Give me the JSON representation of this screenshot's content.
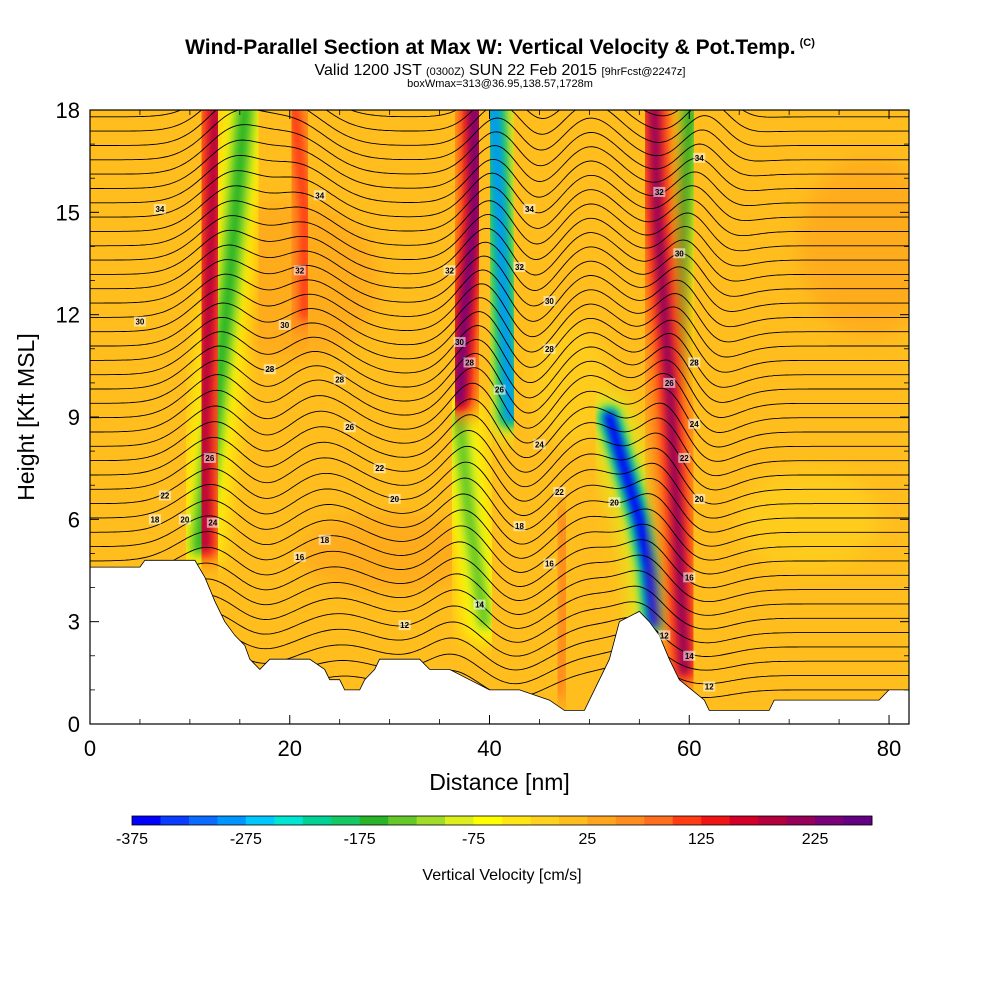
{
  "title": {
    "main": "Wind-Parallel Section at Max W: Vertical Velocity & Pot.Temp.",
    "copyright": "(C)",
    "valid_prefix": "Valid 1200 JST",
    "valid_utc": "(0300Z)",
    "valid_date": "SUN 22 Feb 2015",
    "forecast": "[9hrFcst@2247z]",
    "box": "boxWmax=313@36.95,138.57,1728m"
  },
  "chart_data": {
    "type": "heatmap",
    "xlabel": "Distance [nm]",
    "ylabel": "Height [Kft MSL]",
    "xlim": [
      0,
      82
    ],
    "ylim": [
      0,
      18
    ],
    "x_ticks": [
      0,
      20,
      40,
      60,
      80
    ],
    "y_ticks": [
      0,
      3,
      6,
      9,
      12,
      15,
      18
    ],
    "colorbar": {
      "label": "Vertical Velocity [cm/s]",
      "min": -375,
      "max": 275,
      "step": 25,
      "tick_labels": [
        -375,
        -275,
        -175,
        -75,
        25,
        125,
        225
      ],
      "colors": [
        "#0000ff",
        "#0a3dff",
        "#0a6cff",
        "#0096ff",
        "#00c8ff",
        "#00e6d2",
        "#00d296",
        "#14c864",
        "#28b428",
        "#64c828",
        "#a0dc28",
        "#dcf01e",
        "#ffff00",
        "#ffe614",
        "#ffd21e",
        "#ffbe1e",
        "#ffa51e",
        "#ff8c1e",
        "#ff6e1e",
        "#ff3c14",
        "#f01414",
        "#d20028",
        "#b4003c",
        "#96005a",
        "#780078",
        "#640082"
      ]
    },
    "terrain_kft": [
      [
        0,
        4.6
      ],
      [
        5,
        4.6
      ],
      [
        5.5,
        4.8
      ],
      [
        10.5,
        4.8
      ],
      [
        11.5,
        4.3
      ],
      [
        12.5,
        3.6
      ],
      [
        13.5,
        3.0
      ],
      [
        14.5,
        2.6
      ],
      [
        15.5,
        2.3
      ],
      [
        16,
        1.9
      ],
      [
        17,
        1.6
      ],
      [
        18,
        1.9
      ],
      [
        22,
        1.9
      ],
      [
        23.5,
        1.6
      ],
      [
        24,
        1.3
      ],
      [
        25,
        1.3
      ],
      [
        25.5,
        1.0
      ],
      [
        27,
        1.0
      ],
      [
        27.5,
        1.3
      ],
      [
        28.5,
        1.6
      ],
      [
        29,
        1.9
      ],
      [
        33,
        1.9
      ],
      [
        34,
        1.6
      ],
      [
        36,
        1.6
      ],
      [
        38,
        1.3
      ],
      [
        40,
        1.0
      ],
      [
        43,
        1.0
      ],
      [
        46,
        0.7
      ],
      [
        47.5,
        0.4
      ],
      [
        49.5,
        0.4
      ],
      [
        50.5,
        1.0
      ],
      [
        52,
        1.9
      ],
      [
        53,
        3.0
      ],
      [
        55,
        3.3
      ],
      [
        56,
        3.0
      ],
      [
        57,
        2.6
      ],
      [
        58,
        1.9
      ],
      [
        59,
        1.3
      ],
      [
        61.5,
        0.7
      ],
      [
        62,
        0.4
      ],
      [
        68,
        0.4
      ],
      [
        68.5,
        0.7
      ],
      [
        79,
        0.7
      ],
      [
        80,
        1.0
      ],
      [
        82,
        1.0
      ]
    ],
    "updraft_bands": [
      {
        "w": 175,
        "points": [
          [
            11.5,
            5.2
          ],
          [
            11.5,
            9.0
          ],
          [
            12.0,
            13.0
          ],
          [
            12.5,
            18.0
          ]
        ]
      },
      {
        "w": 225,
        "points": [
          [
            37.0,
            9.5
          ],
          [
            37.5,
            12.0
          ],
          [
            38.5,
            15.0
          ],
          [
            38.5,
            18.0
          ]
        ]
      },
      {
        "w": 200,
        "points": [
          [
            59.5,
            1.6
          ],
          [
            59.0,
            5.0
          ],
          [
            58.0,
            10.0
          ],
          [
            56.8,
            15.0
          ],
          [
            56.5,
            18.0
          ]
        ]
      },
      {
        "w": 100,
        "points": [
          [
            21.5,
            12.0
          ],
          [
            21.5,
            15.0
          ],
          [
            20.5,
            18.0
          ]
        ]
      },
      {
        "w": 50,
        "points": [
          [
            47.0,
            1.0
          ],
          [
            47.5,
            3.0
          ],
          [
            47.5,
            6.0
          ]
        ]
      }
    ],
    "downdraft_bands": [
      {
        "w": -175,
        "points": [
          [
            11.0,
            5.2
          ],
          [
            12.5,
            9.0
          ],
          [
            14.0,
            13.0
          ],
          [
            15.5,
            18.0
          ]
        ]
      },
      {
        "w": -300,
        "points": [
          [
            42.0,
            9.0
          ],
          [
            41.5,
            12.0
          ],
          [
            41.0,
            15.0
          ],
          [
            40.5,
            18.0
          ]
        ]
      },
      {
        "w": -375,
        "points": [
          [
            56.5,
            3.0
          ],
          [
            56.0,
            4.5
          ],
          [
            55.0,
            6.0
          ],
          [
            52.0,
            9.0
          ]
        ]
      },
      {
        "w": -150,
        "points": [
          [
            39.5,
            3.0
          ],
          [
            38.0,
            6.0
          ],
          [
            37.0,
            9.0
          ]
        ]
      },
      {
        "w": -175,
        "points": [
          [
            58.5,
            10.0
          ],
          [
            59.2,
            14.0
          ],
          [
            60.0,
            18.0
          ]
        ]
      }
    ],
    "isentrope_labels": [
      {
        "value": "34",
        "x": 7,
        "y": 15.1
      },
      {
        "value": "34",
        "x": 23,
        "y": 15.5
      },
      {
        "value": "34",
        "x": 44,
        "y": 15.1
      },
      {
        "value": "34",
        "x": 61,
        "y": 16.6
      },
      {
        "value": "32",
        "x": 21,
        "y": 13.3
      },
      {
        "value": "32",
        "x": 36,
        "y": 13.3
      },
      {
        "value": "32",
        "x": 43,
        "y": 13.4
      },
      {
        "value": "32",
        "x": 57,
        "y": 15.6
      },
      {
        "value": "30",
        "x": 5,
        "y": 11.8
      },
      {
        "value": "30",
        "x": 19.5,
        "y": 11.7
      },
      {
        "value": "30",
        "x": 37,
        "y": 11.2
      },
      {
        "value": "30",
        "x": 46,
        "y": 12.4
      },
      {
        "value": "30",
        "x": 59,
        "y": 13.8
      },
      {
        "value": "28",
        "x": 18,
        "y": 10.4
      },
      {
        "value": "28",
        "x": 25,
        "y": 10.1
      },
      {
        "value": "28",
        "x": 38,
        "y": 10.6
      },
      {
        "value": "28",
        "x": 46,
        "y": 11.0
      },
      {
        "value": "28",
        "x": 60.5,
        "y": 10.6
      },
      {
        "value": "26",
        "x": 12,
        "y": 7.8
      },
      {
        "value": "26",
        "x": 26,
        "y": 8.7
      },
      {
        "value": "26",
        "x": 41,
        "y": 9.8
      },
      {
        "value": "26",
        "x": 58,
        "y": 10.0
      },
      {
        "value": "24",
        "x": 45,
        "y": 8.2
      },
      {
        "value": "24",
        "x": 60.5,
        "y": 8.8
      },
      {
        "value": "24",
        "x": 12.3,
        "y": 5.9
      },
      {
        "value": "22",
        "x": 7.5,
        "y": 6.7
      },
      {
        "value": "22",
        "x": 29,
        "y": 7.5
      },
      {
        "value": "22",
        "x": 47,
        "y": 6.8
      },
      {
        "value": "22",
        "x": 59.5,
        "y": 7.8
      },
      {
        "value": "20",
        "x": 9.5,
        "y": 6.0
      },
      {
        "value": "20",
        "x": 30.5,
        "y": 6.6
      },
      {
        "value": "20",
        "x": 52.5,
        "y": 6.5
      },
      {
        "value": "20",
        "x": 61,
        "y": 6.6
      },
      {
        "value": "18",
        "x": 6.5,
        "y": 6.0
      },
      {
        "value": "18",
        "x": 23.5,
        "y": 5.4
      },
      {
        "value": "18",
        "x": 43,
        "y": 5.8
      },
      {
        "value": "16",
        "x": 21,
        "y": 4.9
      },
      {
        "value": "16",
        "x": 46,
        "y": 4.7
      },
      {
        "value": "16",
        "x": 60,
        "y": 4.3
      },
      {
        "value": "14",
        "x": 39,
        "y": 3.5
      },
      {
        "value": "14",
        "x": 60,
        "y": 2.0
      },
      {
        "value": "12",
        "x": 31.5,
        "y": 2.9
      },
      {
        "value": "12",
        "x": 62,
        "y": 1.1
      },
      {
        "value": "12",
        "x": 57.5,
        "y": 2.6
      }
    ]
  }
}
